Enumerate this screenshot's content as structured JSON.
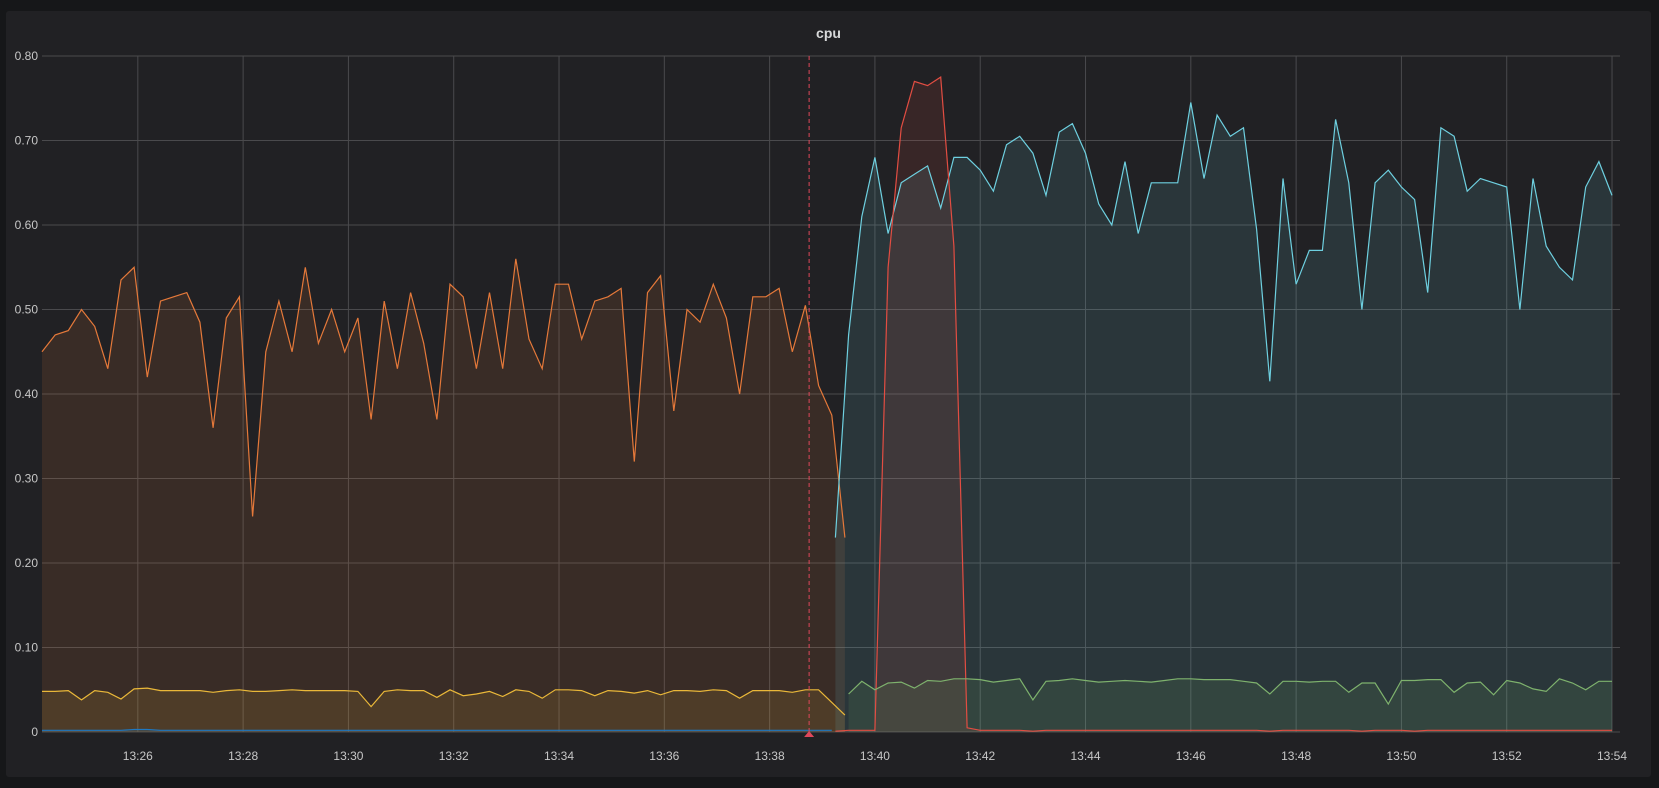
{
  "panel": {
    "title": "cpu",
    "background": "#212124",
    "page_background": "#161719"
  },
  "chart_data": {
    "type": "area",
    "title": "cpu",
    "xlabel": "",
    "ylabel": "",
    "ylim": [
      0,
      0.8
    ],
    "y_ticks": [
      "0",
      "0.10",
      "0.20",
      "0.30",
      "0.40",
      "0.50",
      "0.60",
      "0.70",
      "0.80"
    ],
    "x_ticks": [
      "13:26",
      "13:28",
      "13:30",
      "13:32",
      "13:34",
      "13:36",
      "13:38",
      "13:40",
      "13:42",
      "13:44",
      "13:46",
      "13:48",
      "13:50",
      "13:52",
      "13:54"
    ],
    "x_range_minutes": [
      24.18,
      54.0
    ],
    "sample_interval_minutes": 0.25,
    "grid": true,
    "legend": "none",
    "annotation": {
      "time_minute": 38.75,
      "color": "#e0475a",
      "style": "dashed-vertical-with-marker"
    },
    "series": [
      {
        "name": "series-orange",
        "color": "#e5793a",
        "fill": "#e5793a",
        "start_minute": 24.18,
        "values": [
          0.45,
          0.47,
          0.475,
          0.5,
          0.48,
          0.43,
          0.535,
          0.55,
          0.42,
          0.51,
          0.515,
          0.52,
          0.485,
          0.36,
          0.49,
          0.515,
          0.255,
          0.45,
          0.51,
          0.45,
          0.55,
          0.46,
          0.5,
          0.45,
          0.49,
          0.37,
          0.51,
          0.43,
          0.52,
          0.46,
          0.37,
          0.53,
          0.515,
          0.43,
          0.52,
          0.43,
          0.56,
          0.465,
          0.43,
          0.53,
          0.53,
          0.465,
          0.51,
          0.515,
          0.525,
          0.32,
          0.52,
          0.54,
          0.38,
          0.5,
          0.485,
          0.53,
          0.49,
          0.4,
          0.515,
          0.515,
          0.525,
          0.45,
          0.505,
          0.41,
          0.375,
          0.23
        ]
      },
      {
        "name": "series-yellow",
        "color": "#eab839",
        "fill": "#eab839",
        "start_minute": 24.18,
        "values": [
          0.048,
          0.048,
          0.049,
          0.038,
          0.049,
          0.047,
          0.039,
          0.051,
          0.052,
          0.049,
          0.049,
          0.049,
          0.049,
          0.047,
          0.049,
          0.05,
          0.048,
          0.048,
          0.049,
          0.05,
          0.049,
          0.049,
          0.049,
          0.049,
          0.048,
          0.03,
          0.048,
          0.05,
          0.049,
          0.049,
          0.041,
          0.05,
          0.043,
          0.045,
          0.048,
          0.042,
          0.05,
          0.048,
          0.04,
          0.05,
          0.05,
          0.049,
          0.043,
          0.049,
          0.048,
          0.046,
          0.049,
          0.044,
          0.049,
          0.049,
          0.048,
          0.05,
          0.049,
          0.04,
          0.049,
          0.049,
          0.049,
          0.047,
          0.05,
          0.05,
          0.035,
          0.02
        ]
      },
      {
        "name": "series-blue",
        "color": "#1f78c1",
        "fill": "#1f78c1",
        "start_minute": 24.18,
        "values": [
          0.002,
          0.002,
          0.002,
          0.002,
          0.002,
          0.002,
          0.002,
          0.003,
          0.003,
          0.002,
          0.002,
          0.002,
          0.002,
          0.002,
          0.002,
          0.002,
          0.002,
          0.002,
          0.002,
          0.002,
          0.002,
          0.002,
          0.002,
          0.002,
          0.002,
          0.002,
          0.002,
          0.002,
          0.002,
          0.002,
          0.002,
          0.002,
          0.002,
          0.002,
          0.002,
          0.002,
          0.002,
          0.002,
          0.002,
          0.002,
          0.002,
          0.002,
          0.002,
          0.002,
          0.002,
          0.002,
          0.002,
          0.002,
          0.002,
          0.002,
          0.002,
          0.002,
          0.002,
          0.002,
          0.002,
          0.002,
          0.002,
          0.002,
          0.002,
          0.002,
          0.002
        ]
      },
      {
        "name": "series-cyan",
        "color": "#6ed0e0",
        "fill": "#6ed0e0",
        "start_minute": 39.25,
        "values": [
          0.23,
          0.47,
          0.61,
          0.68,
          0.59,
          0.65,
          0.66,
          0.67,
          0.62,
          0.68,
          0.68,
          0.665,
          0.64,
          0.695,
          0.705,
          0.685,
          0.635,
          0.71,
          0.72,
          0.685,
          0.625,
          0.6,
          0.675,
          0.59,
          0.65,
          0.65,
          0.65,
          0.745,
          0.655,
          0.73,
          0.705,
          0.715,
          0.595,
          0.415,
          0.655,
          0.53,
          0.57,
          0.57,
          0.725,
          0.65,
          0.5,
          0.65,
          0.665,
          0.645,
          0.63,
          0.52,
          0.715,
          0.705,
          0.64,
          0.655,
          0.65,
          0.645,
          0.5,
          0.655,
          0.575,
          0.55,
          0.535,
          0.645,
          0.675,
          0.635
        ]
      },
      {
        "name": "series-red",
        "color": "#e24d42",
        "fill": "#e24d42",
        "start_minute": 39.25,
        "values": [
          0.001,
          0.002,
          0.002,
          0.002,
          0.55,
          0.715,
          0.77,
          0.765,
          0.775,
          0.575,
          0.005,
          0.002,
          0.002,
          0.002,
          0.002,
          0.001,
          0.002,
          0.002,
          0.002,
          0.002,
          0.002,
          0.002,
          0.002,
          0.002,
          0.002,
          0.002,
          0.002,
          0.002,
          0.002,
          0.002,
          0.002,
          0.002,
          0.002,
          0.001,
          0.002,
          0.002,
          0.002,
          0.002,
          0.002,
          0.002,
          0.001,
          0.002,
          0.002,
          0.002,
          0.001,
          0.002,
          0.002,
          0.002,
          0.002,
          0.002,
          0.002,
          0.002,
          0.002,
          0.002,
          0.002,
          0.002,
          0.002,
          0.002,
          0.002,
          0.002
        ]
      },
      {
        "name": "series-green",
        "color": "#7eb26d",
        "fill": "#7eb26d",
        "start_minute": 39.5,
        "values": [
          0.045,
          0.06,
          0.05,
          0.058,
          0.059,
          0.052,
          0.061,
          0.06,
          0.063,
          0.063,
          0.062,
          0.059,
          0.061,
          0.063,
          0.038,
          0.06,
          0.061,
          0.063,
          0.061,
          0.059,
          0.06,
          0.061,
          0.06,
          0.059,
          0.061,
          0.063,
          0.063,
          0.062,
          0.062,
          0.062,
          0.06,
          0.058,
          0.045,
          0.06,
          0.06,
          0.059,
          0.06,
          0.06,
          0.047,
          0.058,
          0.058,
          0.033,
          0.061,
          0.061,
          0.062,
          0.062,
          0.047,
          0.058,
          0.059,
          0.044,
          0.061,
          0.058,
          0.051,
          0.048,
          0.063,
          0.058,
          0.05,
          0.06,
          0.06
        ]
      }
    ]
  }
}
